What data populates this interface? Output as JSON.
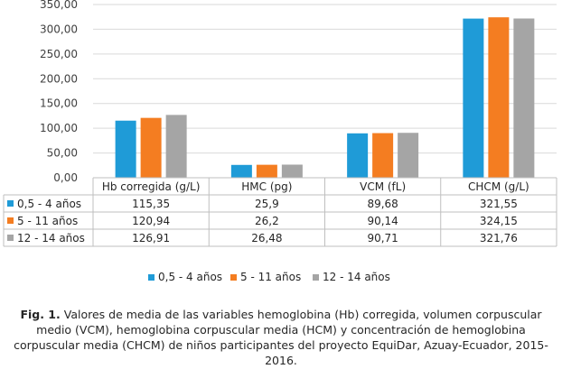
{
  "chart_data": {
    "type": "bar",
    "categories": [
      "Hb corregida (g/L)",
      "HMC (pg)",
      "VCM (fL)",
      "CHCM (g/L)"
    ],
    "series": [
      {
        "name": "0,5 - 4 años",
        "color": "#1F9BD7",
        "values": [
          115.35,
          25.9,
          89.68,
          321.55
        ],
        "labels": [
          "115,35",
          "25,9",
          "89,68",
          "321,55"
        ]
      },
      {
        "name": "5 - 11 años",
        "color": "#F47D21",
        "values": [
          120.94,
          26.2,
          90.14,
          324.15
        ],
        "labels": [
          "120,94",
          "26,2",
          "90,14",
          "324,15"
        ]
      },
      {
        "name": "12 - 14 años",
        "color": "#A5A5A5",
        "values": [
          126.91,
          26.48,
          90.71,
          321.76
        ],
        "labels": [
          "126,91",
          "26,48",
          "90,71",
          "321,76"
        ]
      }
    ],
    "ylim": [
      0,
      350
    ],
    "yticks": [
      "0,00",
      "50,00",
      "100,00",
      "150,00",
      "200,00",
      "250,00",
      "300,00",
      "350,00"
    ],
    "grid": true,
    "data_table": true,
    "legend": "bottom"
  },
  "caption": {
    "label": "Fig. 1.",
    "text": " Valores de media de las variables hemoglobina (Hb) corregida, volumen corpuscular medio (VCM), hemoglobina corpuscular media (HCM) y concentración de hemoglobina corpuscular media (CHCM) de niños participantes del proyecto EquiDar, Azuay-Ecuador, 2015-2016."
  }
}
